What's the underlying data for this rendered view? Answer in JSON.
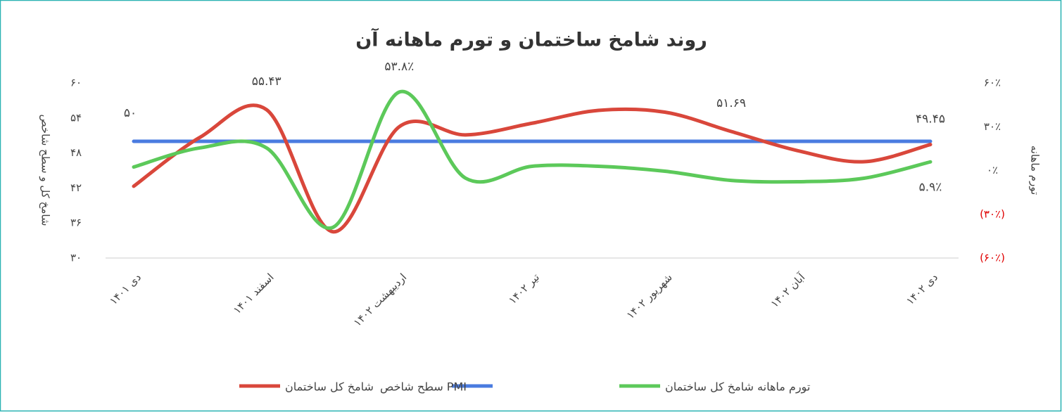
{
  "chart_data": {
    "type": "line",
    "title": "روند شامخ ساختمان و تورم ماهانه آن",
    "y_label": "شامخ کل و سطح شاخص",
    "y2_label": "تورم ماهانه",
    "categories": [
      "دی ۱۴۰۱",
      null,
      "اسفند ۱۴۰۱",
      null,
      "اردیبهشت ۱۴۰۲",
      null,
      "تیر ۱۴۰۲",
      null,
      "شهریور ۱۴۰۲",
      null,
      "آبان ۱۴۰۲",
      null,
      "دی ۱۴۰۲"
    ],
    "ylim": [
      30,
      60
    ],
    "yticks": [
      {
        "value": 30,
        "label": "۳۰"
      },
      {
        "value": 36,
        "label": "۳۶"
      },
      {
        "value": 42,
        "label": "۴۲"
      },
      {
        "value": 48,
        "label": "۴۸"
      },
      {
        "value": 54,
        "label": "۵۴"
      },
      {
        "value": 60,
        "label": "۶۰"
      }
    ],
    "y2lim": [
      -60,
      60
    ],
    "y2ticks": [
      {
        "value": -60,
        "label": "(۶۰٪)"
      },
      {
        "value": -30,
        "label": "(۳۰٪)"
      },
      {
        "value": 0,
        "label": "۰٪"
      },
      {
        "value": 30,
        "label": "۳۰٪"
      },
      {
        "value": 60,
        "label": "۶۰٪"
      }
    ],
    "y2_negative_color": "#e00000",
    "grid": false,
    "legend": "bottom",
    "series": [
      {
        "name": "شامخ کل ساختمان",
        "color": "#d9473b",
        "values": [
          42.3,
          50.7,
          55.43,
          34.5,
          52.5,
          51.1,
          53.1,
          55.3,
          55.0,
          51.69,
          48.4,
          46.5,
          49.45
        ],
        "value_labels": [
          null,
          null,
          "۵۵.۴۳",
          null,
          null,
          null,
          null,
          null,
          null,
          "۵۱.۶۹",
          null,
          null,
          "۴۹.۴۵"
        ]
      },
      {
        "name": "سطح شاخص PMI",
        "color": "#4a7be0",
        "values": [
          50,
          50,
          50,
          50,
          50,
          50,
          50,
          50,
          50,
          50,
          50,
          50,
          50
        ],
        "value_labels": [
          "۵۰",
          null,
          null,
          null,
          null,
          null,
          null,
          null,
          null,
          null,
          null,
          null,
          null
        ]
      },
      {
        "name": "تورم ماهانه شامخ کل ساختمان",
        "color": "#5cc95a",
        "axis": "y2",
        "values": [
          2.4,
          15.5,
          15.5,
          -39,
          53.8,
          -5.3,
          2.9,
          2.9,
          -0.5,
          -6.8,
          -7.7,
          -5.3,
          5.9
        ],
        "value_labels": [
          null,
          null,
          null,
          null,
          "۵۳.۸٪",
          null,
          null,
          null,
          null,
          null,
          null,
          null,
          "۵.۹٪"
        ]
      }
    ]
  }
}
